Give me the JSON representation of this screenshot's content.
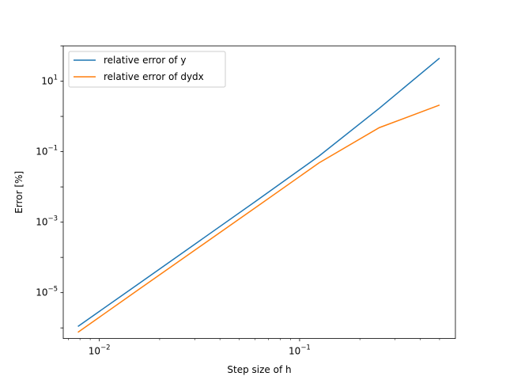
{
  "chart_data": {
    "type": "line",
    "title": "",
    "xlabel": "Step size of h",
    "ylabel": "Error [%]",
    "xscale": "log",
    "yscale": "log",
    "xlim": [
      0.0066,
      0.6
    ],
    "ylim": [
      5e-07,
      100
    ],
    "grid": false,
    "legend_position": "top-left",
    "x_ticks": [
      {
        "value": 0.01,
        "base": "10",
        "exp": "−2"
      },
      {
        "value": 0.1,
        "base": "10",
        "exp": "−1"
      }
    ],
    "y_ticks": [
      {
        "value": 1e-05,
        "base": "10",
        "exp": "−5"
      },
      {
        "value": 0.001,
        "base": "10",
        "exp": "−3"
      },
      {
        "value": 0.1,
        "base": "10",
        "exp": "−1"
      },
      {
        "value": 10,
        "base": "10",
        "exp": "1"
      }
    ],
    "x": [
      0.0078125,
      0.015625,
      0.03125,
      0.0625,
      0.125,
      0.25,
      0.5
    ],
    "series": [
      {
        "name": "relative error of y",
        "color": "#1f77b4",
        "values": [
          1.1e-06,
          1.75e-05,
          0.00028,
          0.0045,
          0.075,
          1.7,
          45
        ]
      },
      {
        "name": "relative error of dydx",
        "color": "#ff7f0e",
        "values": [
          7.5e-07,
          1.2e-05,
          0.00019,
          0.003,
          0.048,
          0.48,
          2.1
        ]
      }
    ]
  }
}
